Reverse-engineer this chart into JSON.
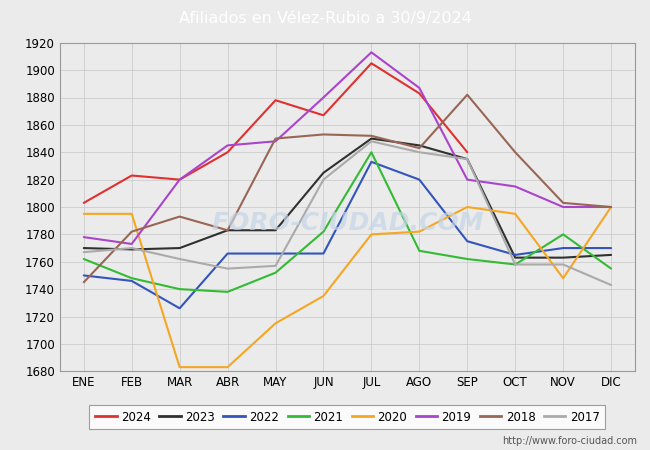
{
  "title": "Afiliados en Vélez-Rubio a 30/9/2024",
  "header_bg": "#5b8dd9",
  "plot_bg": "#ebebeb",
  "fig_bg": "#ebebeb",
  "months": [
    "ENE",
    "FEB",
    "MAR",
    "ABR",
    "MAY",
    "JUN",
    "JUL",
    "AGO",
    "SEP",
    "OCT",
    "NOV",
    "DIC"
  ],
  "ylim": [
    1680,
    1920
  ],
  "yticks": [
    1680,
    1700,
    1720,
    1740,
    1760,
    1780,
    1800,
    1820,
    1840,
    1860,
    1880,
    1900,
    1920
  ],
  "series": {
    "2024": {
      "color": "#e03030",
      "data": [
        1803,
        1823,
        1820,
        1840,
        1878,
        1867,
        1905,
        1883,
        1840,
        null,
        null,
        null
      ]
    },
    "2023": {
      "color": "#303030",
      "data": [
        1770,
        1769,
        1770,
        1783,
        1783,
        1825,
        1850,
        1845,
        1835,
        1763,
        1763,
        1765
      ]
    },
    "2022": {
      "color": "#3355bb",
      "data": [
        1750,
        1746,
        1726,
        1766,
        1766,
        1766,
        1833,
        1820,
        1775,
        1765,
        1770,
        1770
      ]
    },
    "2021": {
      "color": "#33bb33",
      "data": [
        1762,
        1748,
        1740,
        1738,
        1752,
        1782,
        1840,
        1768,
        1762,
        1758,
        1780,
        1755
      ]
    },
    "2020": {
      "color": "#f5a623",
      "data": [
        1795,
        1795,
        1683,
        1683,
        1715,
        1735,
        1780,
        1782,
        1800,
        1795,
        1748,
        1800
      ]
    },
    "2019": {
      "color": "#aa44cc",
      "data": [
        1778,
        1773,
        1820,
        1845,
        1848,
        1880,
        1913,
        1887,
        1820,
        1815,
        1800,
        1800
      ]
    },
    "2018": {
      "color": "#996655",
      "data": [
        1745,
        1782,
        1793,
        1783,
        1850,
        1853,
        1852,
        1843,
        1882,
        1840,
        1803,
        1800
      ]
    },
    "2017": {
      "color": "#aaaaaa",
      "data": [
        1767,
        1770,
        1762,
        1755,
        1757,
        1820,
        1848,
        1840,
        1835,
        1758,
        1758,
        1743
      ]
    }
  },
  "watermark": "FORO-CIUDAD.COM",
  "footer_url": "http://www.foro-ciudad.com",
  "grid_color": "#cccccc",
  "year_order": [
    "2024",
    "2023",
    "2022",
    "2021",
    "2020",
    "2019",
    "2018",
    "2017"
  ]
}
